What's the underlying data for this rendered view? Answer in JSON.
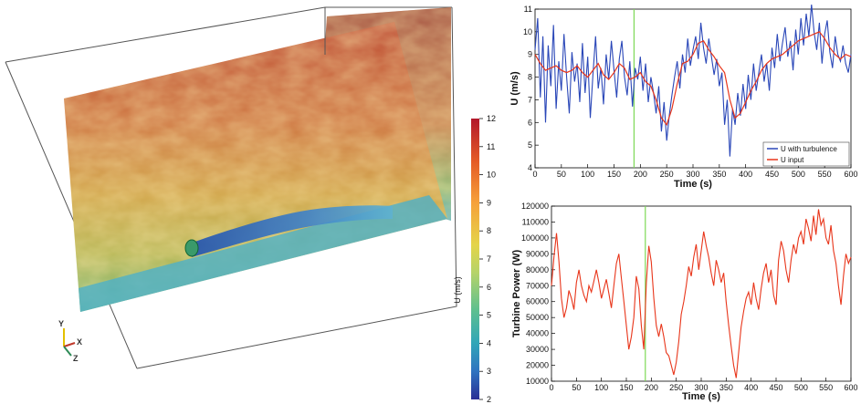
{
  "colors": {
    "turbulence_series": "#2a47b8",
    "input_series": "#e8351a",
    "power_series": "#e8351a",
    "marker_line": "#7ed957"
  },
  "colorbar": {
    "label": "U (m/s)",
    "ticks": [
      "12",
      "11",
      "10",
      "9",
      "8",
      "7",
      "6",
      "5",
      "4",
      "3",
      "2"
    ],
    "range": [
      2,
      12
    ]
  },
  "axes_triad": {
    "y": "Y",
    "x": "X",
    "z": "Z"
  },
  "chart_data": [
    {
      "type": "line",
      "xlabel": "Time (s)",
      "ylabel": "U (m/s)",
      "xlim": [
        0,
        600
      ],
      "ylim": [
        4,
        11
      ],
      "xticks": [
        "0",
        "50",
        "100",
        "150",
        "200",
        "250",
        "300",
        "350",
        "400",
        "450",
        "500",
        "550",
        "600"
      ],
      "yticks": [
        "11",
        "10",
        "9",
        "8",
        "7",
        "6",
        "5",
        "4"
      ],
      "legend_position": "bottom-right",
      "marker_time": 188,
      "series": [
        {
          "name": "U with turbulence",
          "x": [
            0,
            5,
            10,
            15,
            20,
            25,
            30,
            35,
            40,
            45,
            50,
            55,
            60,
            65,
            70,
            75,
            80,
            85,
            90,
            95,
            100,
            105,
            110,
            115,
            120,
            125,
            130,
            135,
            140,
            145,
            150,
            155,
            160,
            165,
            170,
            175,
            180,
            185,
            190,
            195,
            200,
            205,
            210,
            215,
            220,
            225,
            230,
            235,
            240,
            245,
            250,
            255,
            260,
            265,
            270,
            275,
            280,
            285,
            290,
            295,
            300,
            305,
            310,
            315,
            320,
            325,
            330,
            335,
            340,
            345,
            350,
            355,
            360,
            365,
            370,
            375,
            380,
            385,
            390,
            395,
            400,
            405,
            410,
            415,
            420,
            425,
            430,
            435,
            440,
            445,
            450,
            455,
            460,
            465,
            470,
            475,
            480,
            485,
            490,
            495,
            500,
            505,
            510,
            515,
            520,
            525,
            530,
            535,
            540,
            545,
            550,
            555,
            560,
            565,
            570,
            575,
            580,
            585,
            590,
            595,
            600
          ],
          "values": [
            9.2,
            10.6,
            7.1,
            9.8,
            6.0,
            9.4,
            7.6,
            10.3,
            6.6,
            8.7,
            7.4,
            9.9,
            8.0,
            6.4,
            9.1,
            7.8,
            8.6,
            6.9,
            9.5,
            7.3,
            8.9,
            6.2,
            8.1,
            9.8,
            7.5,
            8.4,
            6.8,
            9.0,
            7.9,
            9.6,
            8.3,
            7.1,
            8.8,
            9.6,
            8.0,
            7.2,
            8.7,
            6.7,
            8.4,
            7.9,
            8.9,
            7.4,
            8.6,
            6.9,
            8.0,
            7.3,
            6.4,
            7.6,
            5.6,
            6.9,
            5.2,
            6.3,
            7.2,
            8.0,
            8.7,
            7.5,
            9.0,
            8.2,
            9.7,
            8.5,
            9.2,
            9.8,
            8.8,
            10.4,
            9.3,
            8.6,
            9.7,
            8.9,
            8.1,
            8.8,
            7.6,
            8.2,
            5.9,
            7.0,
            4.5,
            6.6,
            5.9,
            7.3,
            6.3,
            7.7,
            6.6,
            8.1,
            7.0,
            8.6,
            7.4,
            8.2,
            9.0,
            7.8,
            8.6,
            7.4,
            9.3,
            8.4,
            9.9,
            8.7,
            9.5,
            10.2,
            8.9,
            9.6,
            8.3,
            10.1,
            9.0,
            10.6,
            9.4,
            10.8,
            9.8,
            11.2,
            10.0,
            9.2,
            10.4,
            8.6,
            9.9,
            10.5,
            9.1,
            8.4,
            9.8,
            9.0,
            8.7,
            9.4,
            8.6,
            8.2,
            9.0
          ]
        },
        {
          "name": "U input",
          "x": [
            0,
            10,
            20,
            30,
            40,
            50,
            60,
            70,
            80,
            90,
            100,
            110,
            120,
            130,
            140,
            150,
            160,
            170,
            180,
            190,
            200,
            210,
            220,
            230,
            240,
            250,
            260,
            270,
            280,
            290,
            300,
            310,
            320,
            330,
            340,
            350,
            360,
            370,
            380,
            390,
            400,
            410,
            420,
            430,
            440,
            450,
            460,
            470,
            480,
            490,
            500,
            510,
            520,
            530,
            540,
            550,
            560,
            570,
            580,
            590,
            600
          ],
          "values": [
            9.0,
            8.6,
            8.3,
            8.4,
            8.5,
            8.3,
            8.2,
            8.3,
            8.5,
            8.2,
            8.0,
            8.3,
            8.6,
            8.1,
            7.9,
            8.2,
            8.6,
            8.4,
            7.9,
            8.0,
            8.2,
            7.8,
            7.6,
            7.0,
            6.2,
            5.9,
            6.6,
            7.7,
            8.6,
            8.7,
            9.0,
            9.5,
            9.6,
            9.2,
            8.9,
            8.5,
            8.2,
            7.0,
            6.2,
            6.4,
            6.9,
            7.4,
            7.8,
            8.3,
            8.6,
            8.8,
            8.9,
            9.0,
            9.2,
            9.4,
            9.6,
            9.7,
            9.8,
            9.9,
            10.0,
            9.7,
            9.3,
            9.0,
            8.8,
            9.0,
            8.9
          ]
        }
      ]
    },
    {
      "type": "line",
      "xlabel": "Time (s)",
      "ylabel": "Turbine Power (W)",
      "xlim": [
        0,
        600
      ],
      "ylim": [
        10000,
        120000
      ],
      "xticks": [
        "0",
        "50",
        "100",
        "150",
        "200",
        "250",
        "300",
        "350",
        "400",
        "450",
        "500",
        "550",
        "600"
      ],
      "yticks": [
        "120000",
        "110000",
        "100000",
        "90000",
        "80000",
        "70000",
        "60000",
        "50000",
        "40000",
        "30000",
        "20000",
        "10000"
      ],
      "marker_time": 188,
      "series": [
        {
          "x": [
            0,
            5,
            10,
            15,
            20,
            25,
            30,
            35,
            40,
            45,
            50,
            55,
            60,
            65,
            70,
            75,
            80,
            85,
            90,
            95,
            100,
            105,
            110,
            115,
            120,
            125,
            130,
            135,
            140,
            145,
            150,
            155,
            160,
            165,
            170,
            175,
            180,
            185,
            190,
            195,
            200,
            205,
            210,
            215,
            220,
            225,
            230,
            235,
            240,
            245,
            250,
            255,
            260,
            265,
            270,
            275,
            280,
            285,
            290,
            295,
            300,
            305,
            310,
            315,
            320,
            325,
            330,
            335,
            340,
            345,
            350,
            355,
            360,
            365,
            370,
            375,
            380,
            385,
            390,
            395,
            400,
            405,
            410,
            415,
            420,
            425,
            430,
            435,
            440,
            445,
            450,
            455,
            460,
            465,
            470,
            475,
            480,
            485,
            490,
            495,
            500,
            505,
            510,
            515,
            520,
            525,
            530,
            535,
            540,
            545,
            550,
            555,
            560,
            565,
            570,
            575,
            580,
            585,
            590,
            595,
            600
          ],
          "values": [
            70000,
            88000,
            103000,
            85000,
            62000,
            50000,
            56000,
            67000,
            62000,
            55000,
            72000,
            80000,
            70000,
            64000,
            60000,
            70000,
            66000,
            73000,
            80000,
            72000,
            62000,
            68000,
            74000,
            65000,
            56000,
            70000,
            84000,
            90000,
            75000,
            60000,
            45000,
            30000,
            38000,
            50000,
            76000,
            68000,
            45000,
            30000,
            72000,
            95000,
            85000,
            62000,
            45000,
            38000,
            46000,
            38000,
            28000,
            26000,
            20000,
            14000,
            22000,
            35000,
            52000,
            60000,
            70000,
            82000,
            76000,
            88000,
            96000,
            80000,
            92000,
            104000,
            95000,
            88000,
            78000,
            70000,
            86000,
            80000,
            72000,
            78000,
            60000,
            45000,
            32000,
            20000,
            12000,
            28000,
            44000,
            54000,
            62000,
            66000,
            58000,
            72000,
            62000,
            55000,
            68000,
            78000,
            84000,
            72000,
            80000,
            64000,
            58000,
            86000,
            98000,
            92000,
            80000,
            72000,
            86000,
            96000,
            90000,
            100000,
            104000,
            96000,
            112000,
            106000,
            98000,
            114000,
            102000,
            118000,
            108000,
            112000,
            100000,
            96000,
            108000,
            92000,
            84000,
            70000,
            58000,
            76000,
            90000,
            84000,
            88000
          ]
        }
      ]
    }
  ]
}
